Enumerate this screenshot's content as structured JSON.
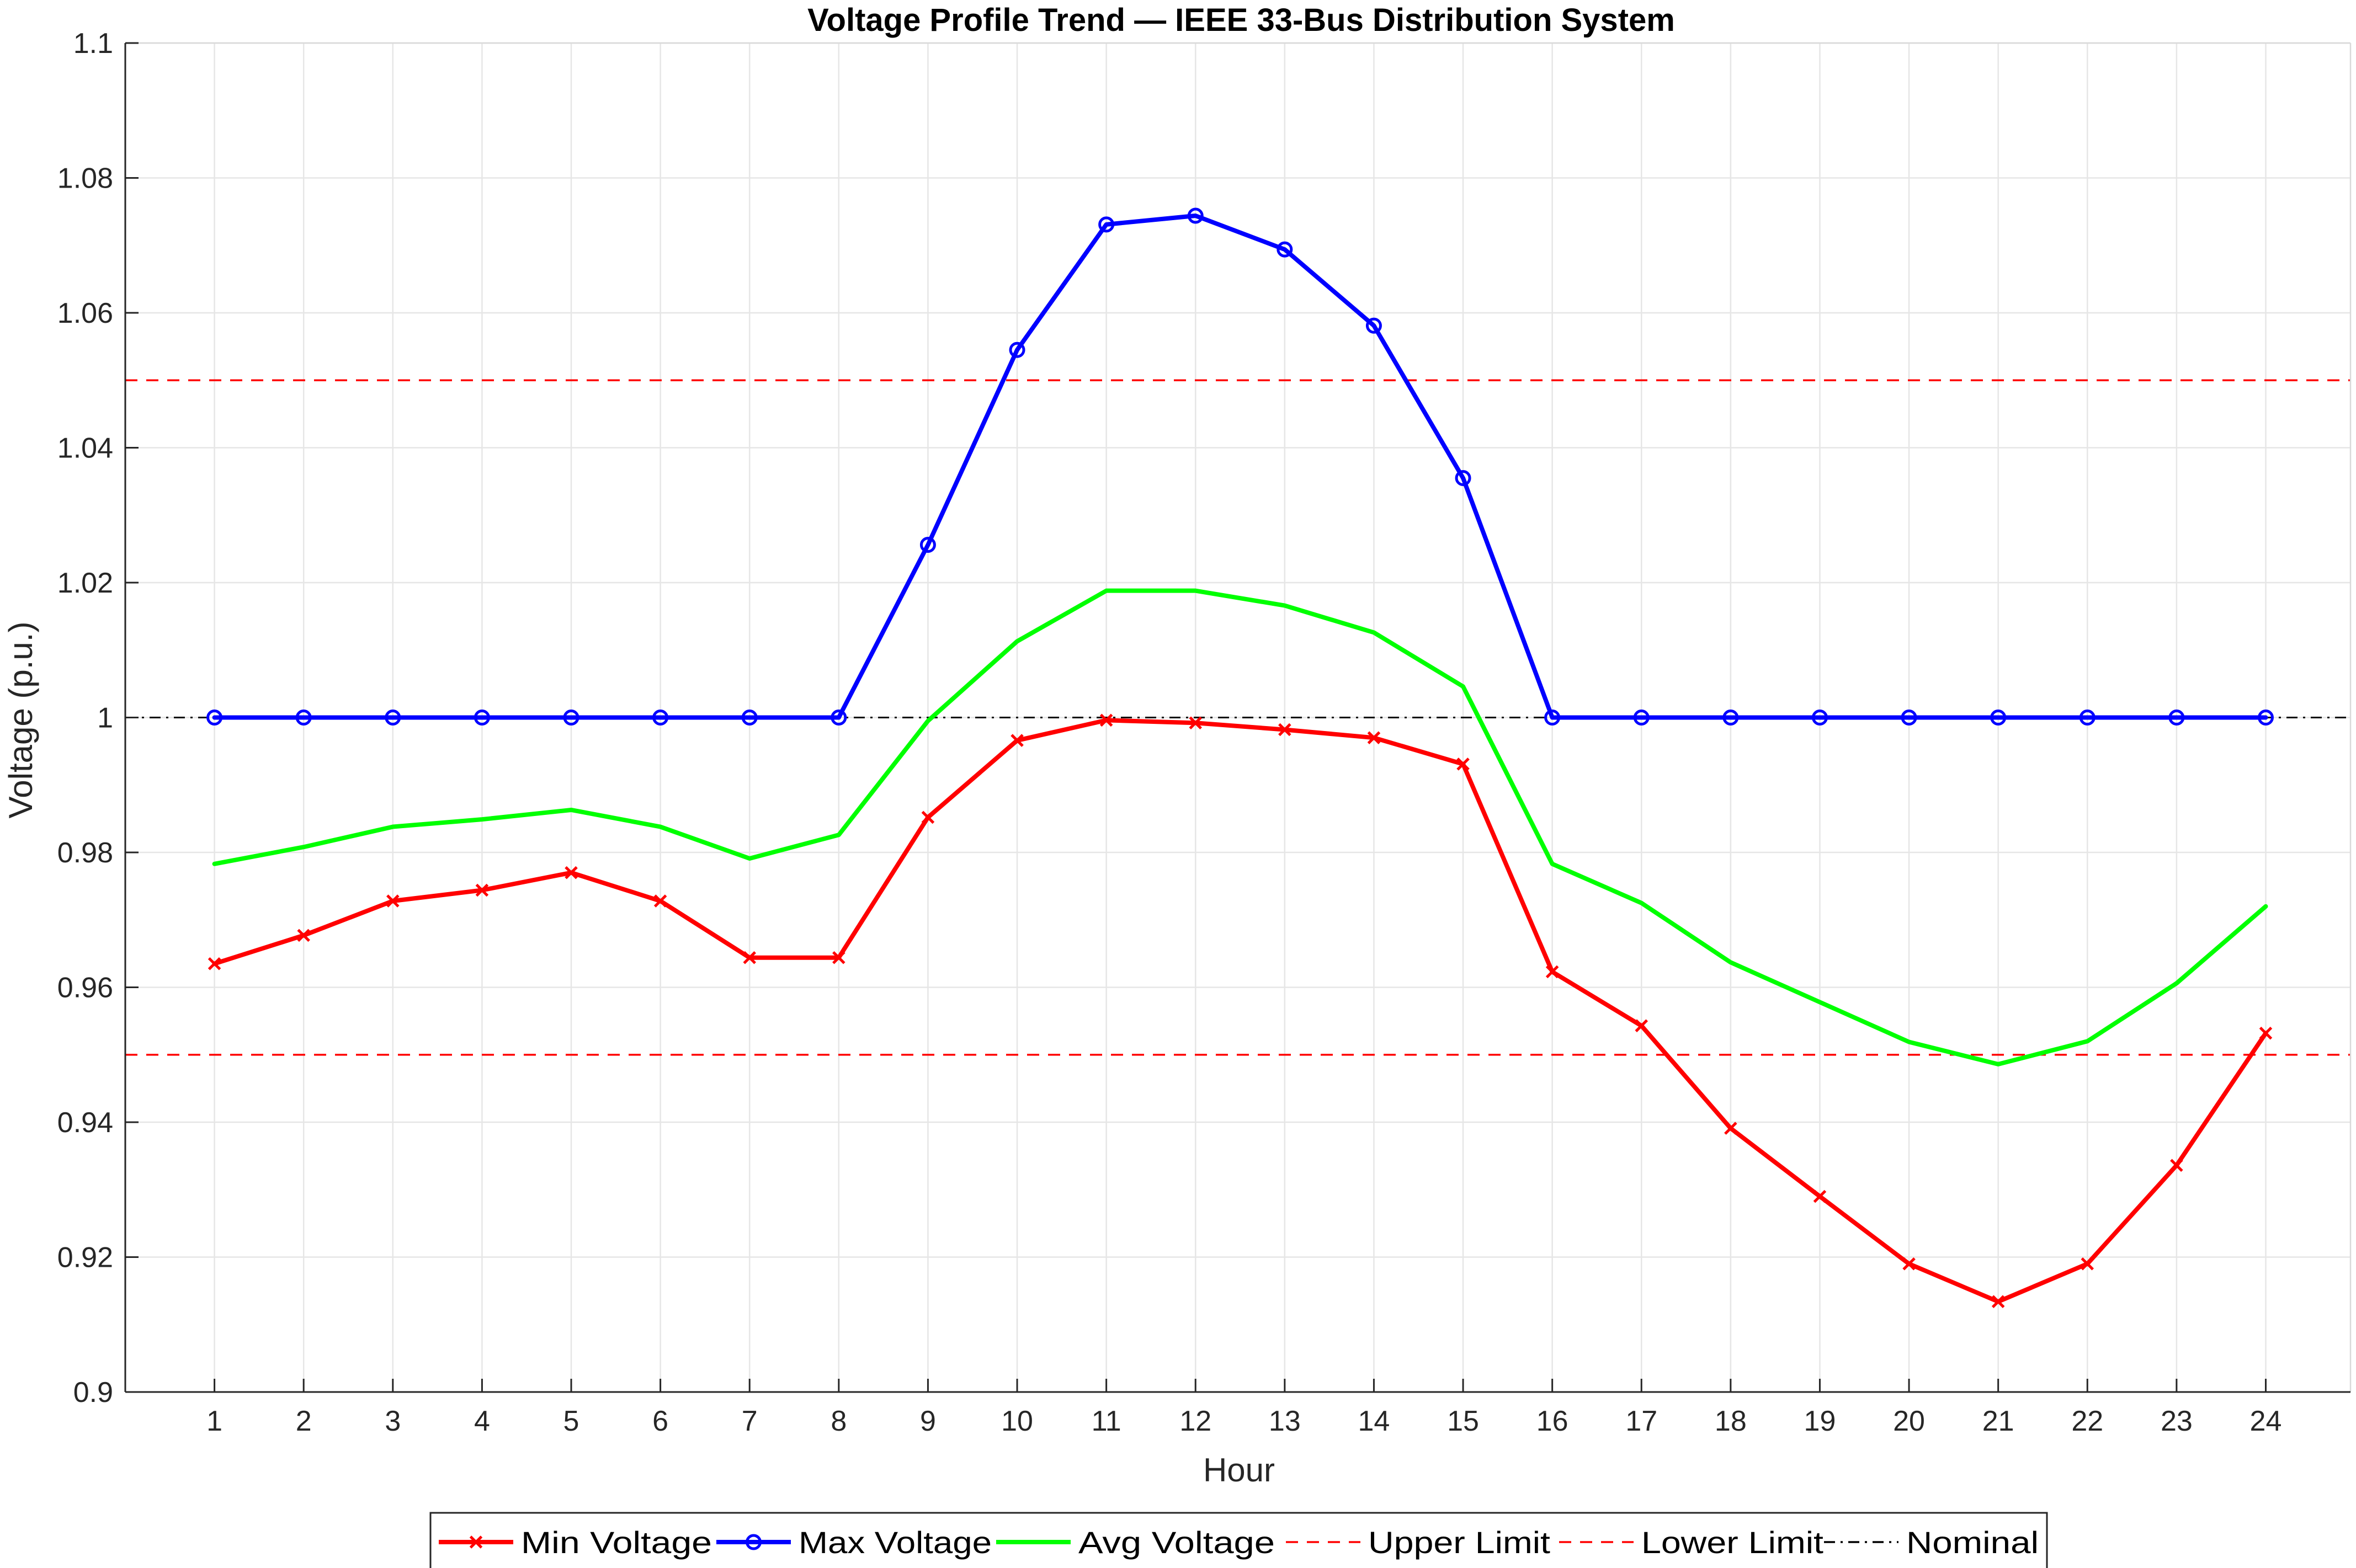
{
  "chart_data": {
    "type": "line",
    "title": "Voltage Profile Trend — IEEE 33-Bus Distribution System",
    "xlabel": "Hour",
    "ylabel": "Voltage (p.u.)",
    "x": [
      1,
      2,
      3,
      4,
      5,
      6,
      7,
      8,
      9,
      10,
      11,
      12,
      13,
      14,
      15,
      16,
      17,
      18,
      19,
      20,
      21,
      22,
      23,
      24
    ],
    "xlim": [
      0.0,
      24.95
    ],
    "ylim": [
      0.9,
      1.1
    ],
    "yticks": [
      "0.9",
      "0.92",
      "0.94",
      "0.96",
      "0.98",
      "1",
      "1.02",
      "1.04",
      "1.06",
      "1.08",
      "1.1"
    ],
    "grid": true,
    "legend_placement": "bottom-outside",
    "series": [
      {
        "name": "Min Voltage",
        "color": "#ff0000",
        "marker": "x",
        "dash": "solid",
        "values": [
          0.9635,
          0.9677,
          0.9728,
          0.9744,
          0.977,
          0.9728,
          0.9644,
          0.9644,
          0.9852,
          0.9966,
          0.9996,
          0.9992,
          0.9982,
          0.997,
          0.9931,
          0.9623,
          0.9543,
          0.9391,
          0.929,
          0.919,
          0.9134,
          0.919,
          0.9336,
          0.9532
        ]
      },
      {
        "name": "Max Voltage",
        "color": "#0000ff",
        "marker": "o",
        "dash": "solid",
        "values": [
          1.0,
          1.0,
          1.0,
          1.0,
          1.0,
          1.0,
          1.0,
          1.0,
          1.0256,
          1.0545,
          1.0731,
          1.0744,
          1.0694,
          1.0581,
          1.0355,
          1.0,
          1.0,
          1.0,
          1.0,
          1.0,
          1.0,
          1.0,
          1.0,
          1.0
        ]
      },
      {
        "name": "Avg Voltage",
        "color": "#00ff00",
        "marker": "none",
        "dash": "solid",
        "values": [
          0.9783,
          0.9808,
          0.9838,
          0.9849,
          0.9863,
          0.9838,
          0.9791,
          0.9826,
          0.9995,
          1.0113,
          1.0188,
          1.0188,
          1.0166,
          1.0126,
          1.0046,
          0.9783,
          0.9725,
          0.9637,
          0.9578,
          0.9519,
          0.9486,
          0.952,
          0.9606,
          0.972
        ]
      }
    ],
    "reference_lines": [
      {
        "name": "Upper Limit",
        "value": 1.05,
        "color": "#ff0000",
        "dash": "dashed"
      },
      {
        "name": "Lower Limit",
        "value": 0.95,
        "color": "#ff0000",
        "dash": "dashed"
      },
      {
        "name": "Nominal",
        "value": 1.0,
        "color": "#000000",
        "dash": "dashdot"
      }
    ]
  }
}
